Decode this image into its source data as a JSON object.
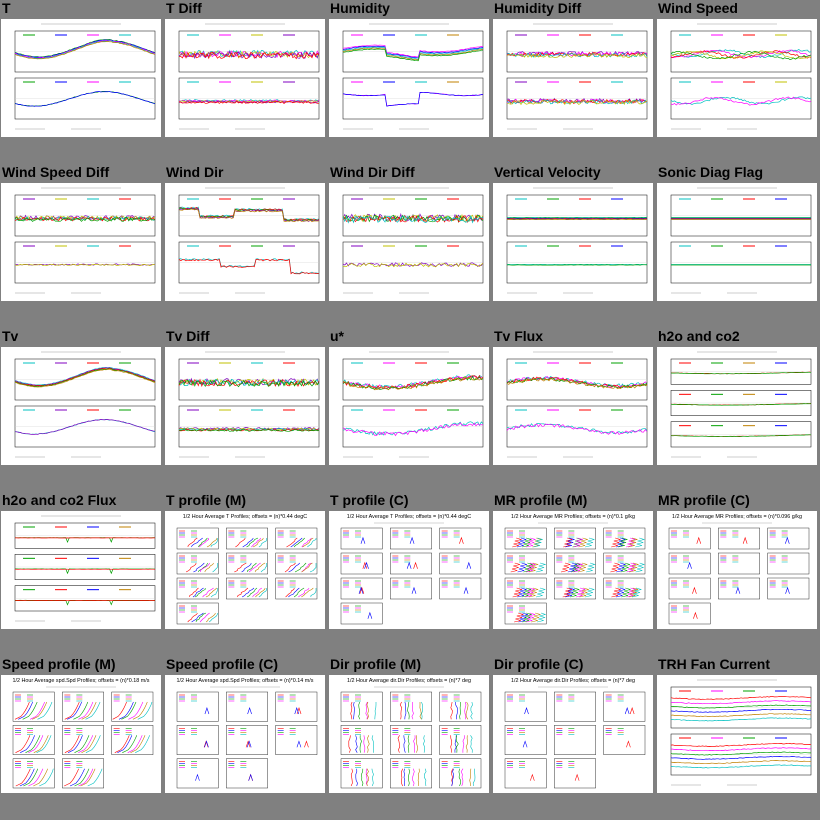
{
  "page": {
    "background": "#808080"
  },
  "tiles": [
    {
      "title": "T",
      "kind": "ts",
      "panels": 2,
      "layout": "t",
      "colors": [
        "#00a000",
        "#0000ff",
        "#ff00ff",
        "#00c0c0",
        "#c08000",
        "#ff0000"
      ]
    },
    {
      "title": "T Diff",
      "kind": "ts",
      "panels": 2,
      "layout": "noisy",
      "colors": [
        "#00c0c0",
        "#ff00ff",
        "#c0c000",
        "#8000c0",
        "#ff0000",
        "#00a000"
      ]
    },
    {
      "title": "Humidity",
      "kind": "ts",
      "panels": 2,
      "layout": "hum",
      "colors": [
        "#ff00ff",
        "#0000ff",
        "#00c0c0",
        "#c08000",
        "#00a000",
        "#ff0000"
      ]
    },
    {
      "title": "Humidity Diff",
      "kind": "ts",
      "panels": 2,
      "layout": "humdiff",
      "colors": [
        "#8000c0",
        "#ff00ff",
        "#ff0000",
        "#00c0c0",
        "#c0c000",
        "#0000ff"
      ]
    },
    {
      "title": "Wind Speed",
      "kind": "ts",
      "panels": 2,
      "layout": "ws",
      "colors": [
        "#00c0c0",
        "#ff00ff",
        "#ff0000",
        "#c0c000",
        "#00a000",
        "#0000ff"
      ]
    },
    {
      "title": "Wind Speed Diff",
      "kind": "ts",
      "panels": 2,
      "layout": "wsdiff",
      "colors": [
        "#8000c0",
        "#c0c000",
        "#00c0c0",
        "#ff0000",
        "#00a000",
        "#ff00ff"
      ]
    },
    {
      "title": "Wind Dir",
      "kind": "ts",
      "panels": 2,
      "layout": "wd",
      "colors": [
        "#00c0c0",
        "#ff0000",
        "#00a000",
        "#8000c0",
        "#c08000",
        "#0000ff"
      ]
    },
    {
      "title": "Wind Dir Diff",
      "kind": "ts",
      "panels": 2,
      "layout": "wddiff",
      "colors": [
        "#8000c0",
        "#c0c000",
        "#00a000",
        "#ff0000",
        "#00c0c0",
        "#ff00ff"
      ]
    },
    {
      "title": "Vertical Velocity",
      "kind": "ts",
      "panels": 2,
      "layout": "flat",
      "colors": [
        "#00c0c0",
        "#00a000",
        "#ff0000",
        "#0000ff",
        "#c08000",
        "#ff00ff"
      ]
    },
    {
      "title": "Sonic Diag Flag",
      "kind": "ts",
      "panels": 2,
      "layout": "flatclean",
      "colors": [
        "#00c0c0",
        "#00a000",
        "#ff0000",
        "#0000ff",
        "#c08000",
        "#ff00ff"
      ]
    },
    {
      "title": "Tv",
      "kind": "ts",
      "panels": 2,
      "layout": "t",
      "colors": [
        "#00c0c0",
        "#8000c0",
        "#ff0000",
        "#00a000",
        "#c08000",
        "#0000ff"
      ]
    },
    {
      "title": "Tv Diff",
      "kind": "ts",
      "panels": 2,
      "layout": "noisy",
      "colors": [
        "#8000c0",
        "#c0c000",
        "#00c0c0",
        "#ff0000",
        "#00a000",
        "#ff00ff"
      ]
    },
    {
      "title": "u*",
      "kind": "ts",
      "panels": 2,
      "layout": "ustar",
      "colors": [
        "#00c0c0",
        "#ff00ff",
        "#ff0000",
        "#00a000",
        "#c08000",
        "#0000ff"
      ]
    },
    {
      "title": "Tv Flux",
      "kind": "ts",
      "panels": 2,
      "layout": "flux",
      "colors": [
        "#00c0c0",
        "#ff00ff",
        "#ff0000",
        "#00a000",
        "#c08000",
        "#0000ff"
      ]
    },
    {
      "title": "h2o and co2",
      "kind": "ts",
      "panels": 3,
      "layout": "h2o",
      "colors": [
        "#ff0000",
        "#00a000",
        "#c08000",
        "#0000ff",
        "#00c0c0",
        "#ff00ff"
      ]
    },
    {
      "title": "h2o and co2 Flux",
      "kind": "ts",
      "panels": 3,
      "layout": "h2oflux",
      "colors": [
        "#00a000",
        "#ff0000",
        "#0000ff",
        "#c08000",
        "#00c0c0",
        "#ff00ff"
      ]
    },
    {
      "title": "T profile (M)",
      "kind": "profile",
      "header": "1/2 Hour Average T Profiles; offsets = (n)*0.44 degC",
      "rows": 4,
      "cols": 3,
      "ptype": "diag",
      "colors": [
        "#ff0000",
        "#0000ff",
        "#00a000",
        "#ff00ff",
        "#c08000",
        "#00c0c0"
      ]
    },
    {
      "title": "T profile (C)",
      "kind": "profile",
      "header": "1/2 Hour Average T Profiles; offsets = (n)*0.44 degC",
      "rows": 4,
      "cols": 3,
      "ptype": "sparse",
      "colors": [
        "#ff0000",
        "#0000ff",
        "#00a000",
        "#ff00ff",
        "#c08000",
        "#00c0c0"
      ]
    },
    {
      "title": "MR profile (M)",
      "kind": "profile",
      "header": "1/2 Hour Average MR Profiles; offsets = (n)*0.1 g/kg",
      "rows": 4,
      "cols": 3,
      "ptype": "zigzag",
      "colors": [
        "#ff0000",
        "#0000ff",
        "#00a000",
        "#ff00ff",
        "#c08000",
        "#00c0c0"
      ]
    },
    {
      "title": "MR profile (C)",
      "kind": "profile",
      "header": "1/2 Hour Average MR Profiles; offsets = (n)*0.096 g/kg",
      "rows": 4,
      "cols": 3,
      "ptype": "sparse",
      "colors": [
        "#ff0000",
        "#0000ff",
        "#00a000",
        "#ff00ff",
        "#c08000",
        "#00c0c0"
      ]
    },
    {
      "title": "Speed profile (M)",
      "kind": "profile",
      "header": "1/2 Hour Average spd.Spd Profiles; offsets = (n)*0.18 m/s",
      "rows": 3,
      "cols": 3,
      "ptype": "curve",
      "colors": [
        "#ff0000",
        "#0000ff",
        "#00a000",
        "#ff00ff",
        "#c08000",
        "#00c0c0"
      ]
    },
    {
      "title": "Speed profile (C)",
      "kind": "profile",
      "header": "1/2 Hour Average spd.Spd Profiles; offsets = (n)*0.14 m/s",
      "rows": 3,
      "cols": 3,
      "ptype": "sparse",
      "colors": [
        "#ff0000",
        "#0000ff",
        "#00a000",
        "#ff00ff",
        "#c08000",
        "#00c0c0"
      ]
    },
    {
      "title": "Dir profile (M)",
      "kind": "profile",
      "header": "1/2 Hour Average dir.Dir Profiles; offsets = (n)*7 deg",
      "rows": 3,
      "cols": 3,
      "ptype": "vertical",
      "colors": [
        "#ff0000",
        "#0000ff",
        "#00a000",
        "#ff00ff",
        "#c08000",
        "#00c0c0"
      ]
    },
    {
      "title": "Dir profile (C)",
      "kind": "profile",
      "header": "1/2 Hour Average dir.Dir Profiles; offsets = (n)*7 deg",
      "rows": 3,
      "cols": 3,
      "ptype": "sparse",
      "colors": [
        "#ff0000",
        "#0000ff",
        "#00a000",
        "#ff00ff",
        "#c08000",
        "#00c0c0"
      ]
    },
    {
      "title": "TRH Fan Current",
      "kind": "ts",
      "panels": 2,
      "layout": "fan",
      "colors": [
        "#ff0000",
        "#ff00ff",
        "#00a000",
        "#0000ff",
        "#c08000",
        "#00c0c0"
      ]
    }
  ]
}
